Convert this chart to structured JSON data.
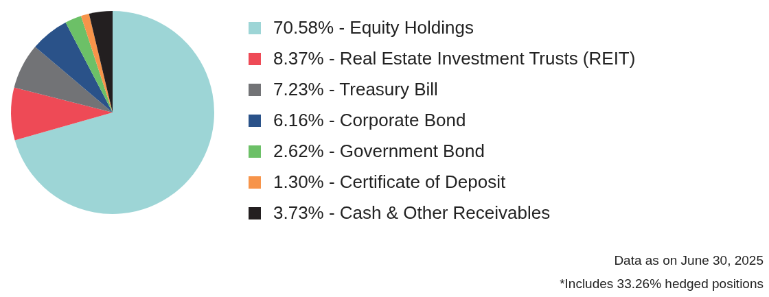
{
  "chart_data": {
    "type": "pie",
    "categories": [
      "70.58% - Equity Holdings",
      "8.37% - Real Estate Investment Trusts (REIT)",
      "7.23% - Treasury Bill",
      "6.16% - Corporate Bond",
      "2.62% - Government Bond",
      "1.30% - Certificate of Deposit",
      "3.73% - Cash & Other Receivables"
    ],
    "values": [
      70.58,
      8.37,
      7.23,
      6.16,
      2.62,
      1.3,
      3.73
    ],
    "colors": [
      "#9dd5d6",
      "#ee4a56",
      "#727376",
      "#2a5289",
      "#6cc067",
      "#f7944a",
      "#231f20"
    ],
    "legend": "right",
    "annotations": [
      "Data as on June 30, 2025",
      "*Includes 33.26% hedged positions"
    ]
  }
}
